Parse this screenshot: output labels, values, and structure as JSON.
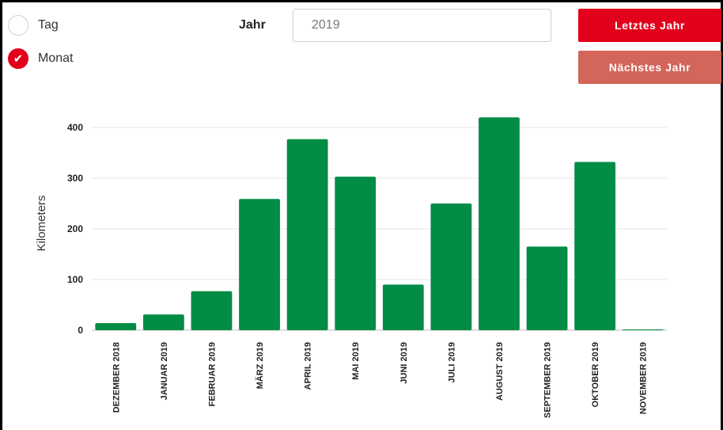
{
  "controls": {
    "radio_tag": {
      "label": "Tag",
      "checked": false
    },
    "radio_monat": {
      "label": "Monat",
      "checked": true
    },
    "year_label": "Jahr",
    "year_value": "2019",
    "btn_prev_label": "Letztes Jahr",
    "btn_next_label": "Nächstes Jahr"
  },
  "colors": {
    "bar": "#008c45",
    "accent": "#e2001a",
    "accent_light": "#d4655a"
  },
  "chart_data": {
    "type": "bar",
    "ylabel": "Kilometers",
    "ylim": [
      0,
      420
    ],
    "yticks": [
      0,
      100,
      200,
      300,
      400
    ],
    "grid": true,
    "categories": [
      "DEZEMBER 2018",
      "JANUAR 2019",
      "FEBRUAR 2019",
      "MÄRZ 2019",
      "APRIL 2019",
      "MAI 2019",
      "JUNI 2019",
      "JULI 2019",
      "AUGUST 2019",
      "SEPTEMBER 2019",
      "OKTOBER 2019",
      "NOVEMBER 2019"
    ],
    "values": [
      14,
      31,
      77,
      259,
      377,
      303,
      90,
      250,
      420,
      165,
      332,
      1
    ]
  }
}
